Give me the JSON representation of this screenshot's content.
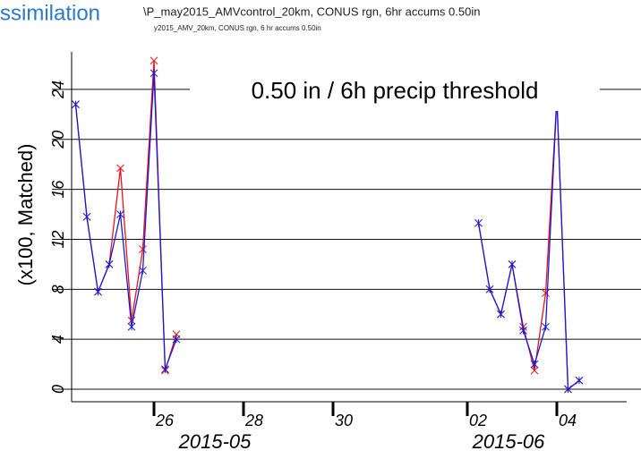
{
  "header": {
    "section": "ssimilation",
    "title": "\\P_may2015_AMVcontrol_20km, CONUS rgn,  6hr accums 0.50in",
    "subtitle": "y2015_AMV_20km, CONUS rgn, 6 hr accums 0.50in"
  },
  "chart_data": {
    "type": "line",
    "ylabel": "(x100, Matched)",
    "annotation": "0.50 in / 6h precip threshold",
    "month_labels": [
      "2015-05",
      "2015-06"
    ],
    "x": [
      24.25,
      24.5,
      24.75,
      25,
      25.25,
      25.5,
      25.75,
      26,
      26.25,
      26.5,
      null,
      33.25,
      33.5,
      33.75,
      34,
      34.25,
      34.5,
      34.75,
      35,
      35.25,
      35.5
    ],
    "series": [
      {
        "color": "#e8141c",
        "values": [
          22.8,
          13.8,
          7.8,
          10,
          17.7,
          5.5,
          11.2,
          26.3,
          1.5,
          4.4,
          null,
          13.3,
          8,
          6,
          10,
          5,
          1.5,
          7.7,
          23.3,
          0,
          0.7
        ]
      },
      {
        "color": "#1a1ad8",
        "values": [
          22.8,
          13.8,
          7.8,
          10,
          14,
          5,
          9.5,
          25.3,
          1.6,
          4,
          null,
          13.3,
          8,
          6,
          10,
          4.7,
          2,
          5,
          23.3,
          0,
          0.7
        ]
      }
    ],
    "xlim": [
      24.16,
      36.56
    ],
    "xticks": [
      26,
      28,
      30,
      {
        "value": 33,
        "label": "02"
      },
      {
        "value": 35,
        "label": "04"
      }
    ],
    "ylim": [
      -1,
      27
    ],
    "yticks": [
      0,
      4,
      8,
      12,
      16,
      20,
      24
    ],
    "grid": true
  }
}
